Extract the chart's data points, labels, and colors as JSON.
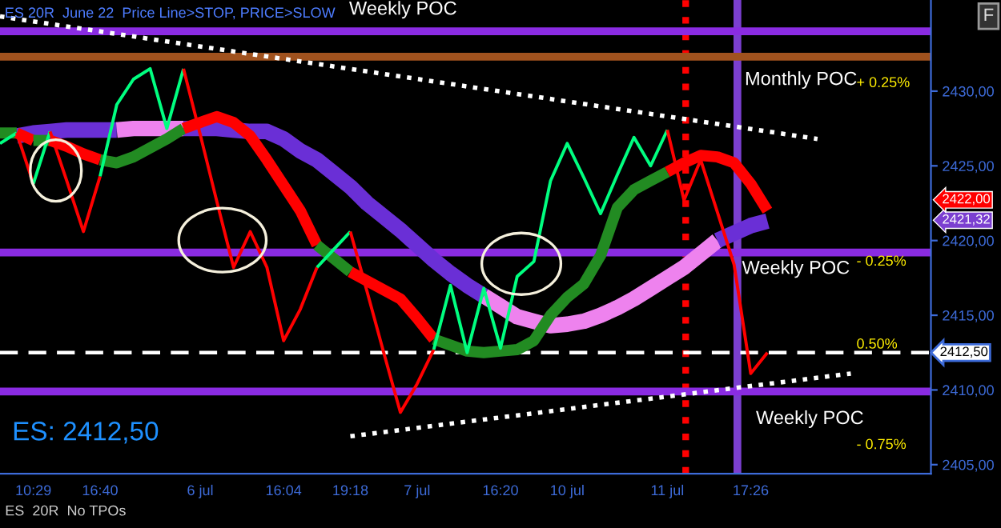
{
  "chart_data": {
    "type": "line",
    "categories": [
      null,
      null,
      "10:29",
      null,
      null,
      null,
      "16:40",
      null,
      null,
      null,
      null,
      null,
      "6 jul",
      null,
      null,
      null,
      null,
      "16:04",
      null,
      null,
      null,
      "19:18",
      null,
      null,
      null,
      "7 jul",
      null,
      null,
      null,
      null,
      "16:20",
      null,
      null,
      null,
      "10 jul",
      null,
      null,
      null,
      null,
      null,
      "11 jul",
      null,
      null,
      null,
      null,
      "17:26",
      null,
      null,
      null,
      null,
      null,
      null,
      null,
      null,
      null,
      null
    ],
    "ylim": [
      2404.4,
      2436.1
    ],
    "yticks": [
      {
        "value": 2405,
        "label": "2405,00"
      },
      {
        "value": 2410,
        "label": "2410,00"
      },
      {
        "value": 2415,
        "label": "2415,00"
      },
      {
        "value": 2420,
        "label": "2420,00"
      },
      {
        "value": 2425,
        "label": "2425,00"
      },
      {
        "value": 2430,
        "label": "2430,00"
      }
    ],
    "grid": false,
    "series": [
      {
        "color": "#6a2fd6",
        "values": [
          null,
          2427.0,
          2427.2,
          2427.3,
          2427.4,
          2427.4,
          2427.4,
          2427.4,
          null,
          null,
          null,
          null,
          null,
          null,
          null,
          null,
          null,
          null,
          null,
          null,
          null,
          null,
          null,
          null,
          null,
          null,
          null,
          null,
          null,
          null,
          null,
          null,
          null,
          null,
          null,
          null,
          null,
          null,
          null,
          null,
          null,
          null,
          null,
          null,
          null,
          null,
          null,
          null,
          null,
          null,
          null,
          null,
          null,
          null,
          null,
          null
        ]
      },
      {
        "color": "#ee82ee",
        "values": [
          null,
          null,
          null,
          null,
          null,
          null,
          null,
          2427.4,
          2427.5,
          2427.5,
          2427.5,
          2427.5,
          null,
          null,
          null,
          null,
          null,
          null,
          null,
          null,
          null,
          null,
          null,
          null,
          null,
          null,
          null,
          null,
          null,
          null,
          null,
          null,
          null,
          null,
          null,
          null,
          null,
          null,
          null,
          null,
          null,
          null,
          null,
          null,
          null,
          null,
          null,
          null,
          null,
          null,
          null,
          null,
          null,
          null,
          null,
          null
        ]
      },
      {
        "color": "#6a2fd6",
        "values": [
          null,
          null,
          null,
          null,
          null,
          null,
          null,
          null,
          null,
          null,
          null,
          2427.5,
          2427.5,
          2427.5,
          2427.4,
          2427.3,
          2427.3,
          2426.8,
          2426.0,
          2425.4,
          2424.5,
          2423.6,
          2422.5,
          2421.6,
          2420.7,
          2419.7,
          2418.7,
          2417.8,
          2417.0,
          2416.3,
          null,
          null,
          null,
          null,
          null,
          null,
          null,
          null,
          null,
          null,
          null,
          null,
          null,
          null,
          null,
          null,
          null,
          null,
          null,
          null,
          null,
          null,
          null,
          null,
          null,
          null
        ]
      },
      {
        "color": "#ee82ee",
        "values": [
          null,
          null,
          null,
          null,
          null,
          null,
          null,
          null,
          null,
          null,
          null,
          null,
          null,
          null,
          null,
          null,
          null,
          null,
          null,
          null,
          null,
          null,
          null,
          null,
          null,
          null,
          null,
          null,
          null,
          2416.3,
          2415.6,
          2414.9,
          2414.6,
          2414.3,
          2414.4,
          2414.6,
          2415.0,
          2415.5,
          2416.1,
          2416.8,
          2417.5,
          2418.2,
          2419.1,
          2420.0,
          null,
          null,
          null,
          null,
          null,
          null,
          null,
          null,
          null,
          null,
          null,
          null
        ]
      },
      {
        "color": "#6a2fd6",
        "values": [
          null,
          null,
          null,
          null,
          null,
          null,
          null,
          null,
          null,
          null,
          null,
          null,
          null,
          null,
          null,
          null,
          null,
          null,
          null,
          null,
          null,
          null,
          null,
          null,
          null,
          null,
          null,
          null,
          null,
          null,
          null,
          null,
          null,
          null,
          null,
          null,
          null,
          null,
          null,
          null,
          null,
          null,
          null,
          2420.0,
          2420.5,
          2421.0,
          2421.3,
          null,
          null,
          null,
          null,
          null,
          null,
          null,
          null,
          null
        ]
      },
      {
        "color": "#228b22",
        "values": [
          2427.2,
          2427.2,
          null,
          null,
          null,
          null,
          null,
          null,
          null,
          null,
          null,
          null,
          null,
          null,
          null,
          null,
          null,
          null,
          null,
          null,
          null,
          null,
          null,
          null,
          null,
          null,
          null,
          null,
          null,
          null,
          null,
          null,
          null,
          null,
          null,
          null,
          null,
          null,
          null,
          null,
          null,
          null,
          null,
          null,
          null,
          null,
          null,
          null,
          null,
          null,
          null,
          null,
          null,
          null,
          null,
          null
        ]
      },
      {
        "color": "#ff0000",
        "values": [
          null,
          2427.2,
          2426.7,
          null,
          null,
          null,
          null,
          null,
          null,
          null,
          null,
          null,
          null,
          null,
          null,
          null,
          null,
          null,
          null,
          null,
          null,
          null,
          null,
          null,
          null,
          null,
          null,
          null,
          null,
          null,
          null,
          null,
          null,
          null,
          null,
          null,
          null,
          null,
          null,
          null,
          null,
          null,
          null,
          null,
          null,
          null,
          null,
          null,
          null,
          null,
          null,
          null,
          null,
          null,
          null,
          null
        ]
      },
      {
        "color": "#228b22",
        "values": [
          null,
          null,
          2426.7,
          2426.7,
          null,
          null,
          null,
          null,
          null,
          null,
          null,
          null,
          null,
          null,
          null,
          null,
          null,
          null,
          null,
          null,
          null,
          null,
          null,
          null,
          null,
          null,
          null,
          null,
          null,
          null,
          null,
          null,
          null,
          null,
          null,
          null,
          null,
          null,
          null,
          null,
          null,
          null,
          null,
          null,
          null,
          null,
          null,
          null,
          null,
          null,
          null,
          null,
          null,
          null,
          null,
          null
        ]
      },
      {
        "color": "#ff0000",
        "values": [
          null,
          null,
          null,
          2426.7,
          2426.3,
          2425.8,
          2425.4,
          null,
          null,
          null,
          null,
          null,
          null,
          null,
          null,
          null,
          null,
          null,
          null,
          null,
          null,
          null,
          null,
          null,
          null,
          null,
          null,
          null,
          null,
          null,
          null,
          null,
          null,
          null,
          null,
          null,
          null,
          null,
          null,
          null,
          null,
          null,
          null,
          null,
          null,
          null,
          null,
          null,
          null,
          null,
          null,
          null,
          null,
          null,
          null,
          null
        ]
      },
      {
        "color": "#228b22",
        "values": [
          null,
          null,
          null,
          null,
          null,
          null,
          2425.4,
          2425.2,
          2425.6,
          2426.2,
          2426.8,
          2427.5,
          null,
          null,
          null,
          null,
          null,
          null,
          null,
          null,
          null,
          null,
          null,
          null,
          null,
          null,
          null,
          null,
          null,
          null,
          null,
          null,
          null,
          null,
          null,
          null,
          null,
          null,
          null,
          null,
          null,
          null,
          null,
          null,
          null,
          null,
          null,
          null,
          null,
          null,
          null,
          null,
          null,
          null,
          null,
          null
        ]
      },
      {
        "color": "#ff0000",
        "values": [
          null,
          null,
          null,
          null,
          null,
          null,
          null,
          null,
          null,
          null,
          null,
          2427.5,
          2427.9,
          2428.3,
          2427.9,
          2427.0,
          2425.4,
          2423.7,
          2422.0,
          2419.7,
          null,
          null,
          null,
          null,
          null,
          null,
          null,
          null,
          null,
          null,
          null,
          null,
          null,
          null,
          null,
          null,
          null,
          null,
          null,
          null,
          null,
          null,
          null,
          null,
          null,
          null,
          null,
          null,
          null,
          null,
          null,
          null,
          null,
          null,
          null,
          null
        ]
      },
      {
        "color": "#228b22",
        "values": [
          null,
          null,
          null,
          null,
          null,
          null,
          null,
          null,
          null,
          null,
          null,
          null,
          null,
          null,
          null,
          null,
          null,
          null,
          null,
          2419.7,
          2418.8,
          2417.9,
          null,
          null,
          null,
          null,
          null,
          null,
          null,
          null,
          null,
          null,
          null,
          null,
          null,
          null,
          null,
          null,
          null,
          null,
          null,
          null,
          null,
          null,
          null,
          null,
          null,
          null,
          null,
          null,
          null,
          null,
          null,
          null,
          null,
          null
        ]
      },
      {
        "color": "#ff0000",
        "values": [
          null,
          null,
          null,
          null,
          null,
          null,
          null,
          null,
          null,
          null,
          null,
          null,
          null,
          null,
          null,
          null,
          null,
          null,
          null,
          null,
          null,
          2417.9,
          2417.3,
          2416.7,
          2416.1,
          2414.8,
          2413.4,
          null,
          null,
          null,
          null,
          null,
          null,
          null,
          null,
          null,
          null,
          null,
          null,
          null,
          null,
          null,
          null,
          null,
          null,
          null,
          null,
          null,
          null,
          null,
          null,
          null,
          null,
          null,
          null,
          null
        ]
      },
      {
        "color": "#228b22",
        "values": [
          null,
          null,
          null,
          null,
          null,
          null,
          null,
          null,
          null,
          null,
          null,
          null,
          null,
          null,
          null,
          null,
          null,
          null,
          null,
          null,
          null,
          null,
          null,
          null,
          null,
          null,
          2413.4,
          2413.0,
          2412.6,
          2412.5,
          2412.6,
          2412.7,
          2413.3,
          2415.0,
          2416.2,
          2417.1,
          2419.0,
          2422.2,
          2423.4,
          2424.0,
          2424.6,
          null,
          null,
          null,
          null,
          null,
          null,
          null,
          null,
          null,
          null,
          null,
          null,
          null,
          null,
          null
        ]
      },
      {
        "color": "#ff0000",
        "values": [
          null,
          null,
          null,
          null,
          null,
          null,
          null,
          null,
          null,
          null,
          null,
          null,
          null,
          null,
          null,
          null,
          null,
          null,
          null,
          null,
          null,
          null,
          null,
          null,
          null,
          null,
          null,
          null,
          null,
          null,
          null,
          null,
          null,
          null,
          null,
          null,
          null,
          null,
          null,
          null,
          2424.6,
          2425.2,
          2425.7,
          2425.6,
          2425.2,
          2423.8,
          2422.0,
          null,
          null,
          null,
          null,
          null,
          null,
          null,
          null,
          null
        ]
      },
      {
        "color": "#00ff80",
        "values": [
          2426.5,
          2427.2,
          null,
          null,
          null,
          null,
          null,
          null,
          null,
          null,
          null,
          null,
          null,
          null,
          null,
          null,
          null,
          null,
          null,
          null,
          null,
          null,
          null,
          null,
          null,
          null,
          null,
          null,
          null,
          null,
          null,
          null,
          null,
          null,
          null,
          null,
          null,
          null,
          null,
          null,
          null,
          null,
          null,
          null,
          null,
          null,
          null,
          null,
          null,
          null,
          null,
          null,
          null,
          null,
          null,
          null
        ]
      },
      {
        "color": "#ff0000",
        "values": [
          null,
          2427.2,
          2423.8,
          null,
          null,
          null,
          null,
          null,
          null,
          null,
          null,
          null,
          null,
          null,
          null,
          null,
          null,
          null,
          null,
          null,
          null,
          null,
          null,
          null,
          null,
          null,
          null,
          null,
          null,
          null,
          null,
          null,
          null,
          null,
          null,
          null,
          null,
          null,
          null,
          null,
          null,
          null,
          null,
          null,
          null,
          null,
          null,
          null,
          null,
          null,
          null,
          null,
          null,
          null,
          null,
          null
        ]
      },
      {
        "color": "#00ff80",
        "values": [
          null,
          null,
          2423.8,
          2427.3,
          null,
          null,
          null,
          null,
          null,
          null,
          null,
          null,
          null,
          null,
          null,
          null,
          null,
          null,
          null,
          null,
          null,
          null,
          null,
          null,
          null,
          null,
          null,
          null,
          null,
          null,
          null,
          null,
          null,
          null,
          null,
          null,
          null,
          null,
          null,
          null,
          null,
          null,
          null,
          null,
          null,
          null,
          null,
          null,
          null,
          null,
          null,
          null,
          null,
          null,
          null,
          null
        ]
      },
      {
        "color": "#ff0000",
        "values": [
          null,
          null,
          null,
          2427.3,
          2424.0,
          2420.6,
          2424.3,
          null,
          null,
          null,
          null,
          null,
          null,
          null,
          null,
          null,
          null,
          null,
          null,
          null,
          null,
          null,
          null,
          null,
          null,
          null,
          null,
          null,
          null,
          null,
          null,
          null,
          null,
          null,
          null,
          null,
          null,
          null,
          null,
          null,
          null,
          null,
          null,
          null,
          null,
          null,
          null,
          null,
          null,
          null,
          null,
          null,
          null,
          null,
          null,
          null
        ]
      },
      {
        "color": "#00ff80",
        "values": [
          null,
          null,
          null,
          null,
          null,
          null,
          2424.3,
          2429.1,
          2430.8,
          2431.5,
          2427.5,
          2431.5,
          null,
          null,
          null,
          null,
          null,
          null,
          null,
          null,
          null,
          null,
          null,
          null,
          null,
          null,
          null,
          null,
          null,
          null,
          null,
          null,
          null,
          null,
          null,
          null,
          null,
          null,
          null,
          null,
          null,
          null,
          null,
          null,
          null,
          null,
          null,
          null,
          null,
          null,
          null,
          null,
          null,
          null,
          null,
          null
        ]
      },
      {
        "color": "#ff0000",
        "values": [
          null,
          null,
          null,
          null,
          null,
          null,
          null,
          null,
          null,
          null,
          null,
          2431.5,
          2427.1,
          2422.6,
          2418.2,
          2420.6,
          2418.2,
          2413.3,
          2415.4,
          2418.2,
          null,
          null,
          null,
          null,
          null,
          null,
          null,
          null,
          null,
          null,
          null,
          null,
          null,
          null,
          null,
          null,
          null,
          null,
          null,
          null,
          null,
          null,
          null,
          null,
          null,
          null,
          null,
          null,
          null,
          null,
          null,
          null,
          null,
          null,
          null,
          null
        ]
      },
      {
        "color": "#00ff80",
        "values": [
          null,
          null,
          null,
          null,
          null,
          null,
          null,
          null,
          null,
          null,
          null,
          null,
          null,
          null,
          null,
          null,
          null,
          null,
          null,
          2418.2,
          2419.4,
          2420.6,
          null,
          null,
          null,
          null,
          null,
          null,
          null,
          null,
          null,
          null,
          null,
          null,
          null,
          null,
          null,
          null,
          null,
          null,
          null,
          null,
          null,
          null,
          null,
          null,
          null,
          null,
          null,
          null,
          null,
          null,
          null,
          null,
          null,
          null
        ]
      },
      {
        "color": "#ff0000",
        "values": [
          null,
          null,
          null,
          null,
          null,
          null,
          null,
          null,
          null,
          null,
          null,
          null,
          null,
          null,
          null,
          null,
          null,
          null,
          null,
          null,
          null,
          2420.6,
          2416.6,
          2412.5,
          2408.5,
          2410.4,
          2412.7,
          null,
          null,
          null,
          null,
          null,
          null,
          null,
          null,
          null,
          null,
          null,
          null,
          null,
          null,
          null,
          null,
          null,
          null,
          null,
          null,
          null,
          null,
          null,
          null,
          null,
          null,
          null,
          null,
          null
        ]
      },
      {
        "color": "#00ff80",
        "values": [
          null,
          null,
          null,
          null,
          null,
          null,
          null,
          null,
          null,
          null,
          null,
          null,
          null,
          null,
          null,
          null,
          null,
          null,
          null,
          null,
          null,
          null,
          null,
          null,
          null,
          null,
          2412.7,
          2417.0,
          2412.5,
          2416.8,
          2412.8,
          2417.6,
          2418.6,
          2424.0,
          2426.5,
          2424.2,
          2421.8,
          2424.4,
          2426.9,
          2425.0,
          2427.4,
          null,
          null,
          null,
          null,
          null,
          null,
          null,
          null,
          null,
          null,
          null,
          null,
          null,
          null,
          null
        ]
      },
      {
        "color": "#ff0000",
        "values": [
          null,
          null,
          null,
          null,
          null,
          null,
          null,
          null,
          null,
          null,
          null,
          null,
          null,
          null,
          null,
          null,
          null,
          null,
          null,
          null,
          null,
          null,
          null,
          null,
          null,
          null,
          null,
          null,
          null,
          null,
          null,
          null,
          null,
          null,
          null,
          null,
          null,
          null,
          null,
          null,
          2427.4,
          2422.7,
          2425.4,
          2421.9,
          2418.4,
          2411.1,
          2412.5,
          null,
          null,
          null,
          null,
          null,
          null,
          null,
          null,
          null
        ]
      },
      {
        "color": "#ffffff",
        "line_style": "dotted",
        "values": [
          2435.0,
          null,
          null,
          null,
          null,
          null,
          null,
          null,
          null,
          null,
          null,
          null,
          null,
          null,
          null,
          null,
          null,
          null,
          null,
          null,
          null,
          null,
          null,
          null,
          null,
          null,
          null,
          null,
          null,
          null,
          null,
          null,
          null,
          null,
          null,
          null,
          null,
          null,
          null,
          null,
          null,
          null,
          null,
          null,
          null,
          null,
          null,
          null,
          null,
          2426.8,
          null,
          null,
          null,
          null,
          null,
          null
        ]
      },
      {
        "color": "#ffffff",
        "line_style": "dotted",
        "values": [
          null,
          null,
          null,
          null,
          null,
          null,
          null,
          null,
          null,
          null,
          null,
          null,
          null,
          null,
          null,
          null,
          null,
          null,
          null,
          null,
          null,
          2406.9,
          null,
          null,
          null,
          null,
          null,
          null,
          null,
          null,
          null,
          null,
          null,
          null,
          null,
          null,
          null,
          null,
          null,
          null,
          null,
          null,
          null,
          null,
          null,
          null,
          null,
          null,
          null,
          null,
          null,
          2411.1,
          null,
          null,
          null,
          null
        ]
      }
    ],
    "ref_lines": [
      {
        "axis": "y",
        "value": 2434.0,
        "color": "#8a2be2"
      },
      {
        "axis": "y",
        "value": 2432.3,
        "color": "#a0521e"
      },
      {
        "axis": "y",
        "value": 2419.2,
        "color": "#8a2be2"
      },
      {
        "axis": "y",
        "value": 2409.9,
        "color": "#8a2be2"
      },
      {
        "axis": "y",
        "value": 2412.5,
        "color": "#ffffff",
        "line_style": "dashed",
        "label": "2412,50"
      }
    ],
    "annotations": [
      "ES 20R  June 22  Price Line>STOP, PRICE>SLOW",
      "Weekly POC",
      "Monthly POC",
      "+ 0.25%",
      "Weekly POC",
      "- 0.25%",
      "0.50%",
      "Weekly POC",
      "- 0.75%",
      "2422,00",
      "2421,32",
      "ES: 2412,50",
      "ES  20R  No TPOs",
      "F"
    ]
  }
}
